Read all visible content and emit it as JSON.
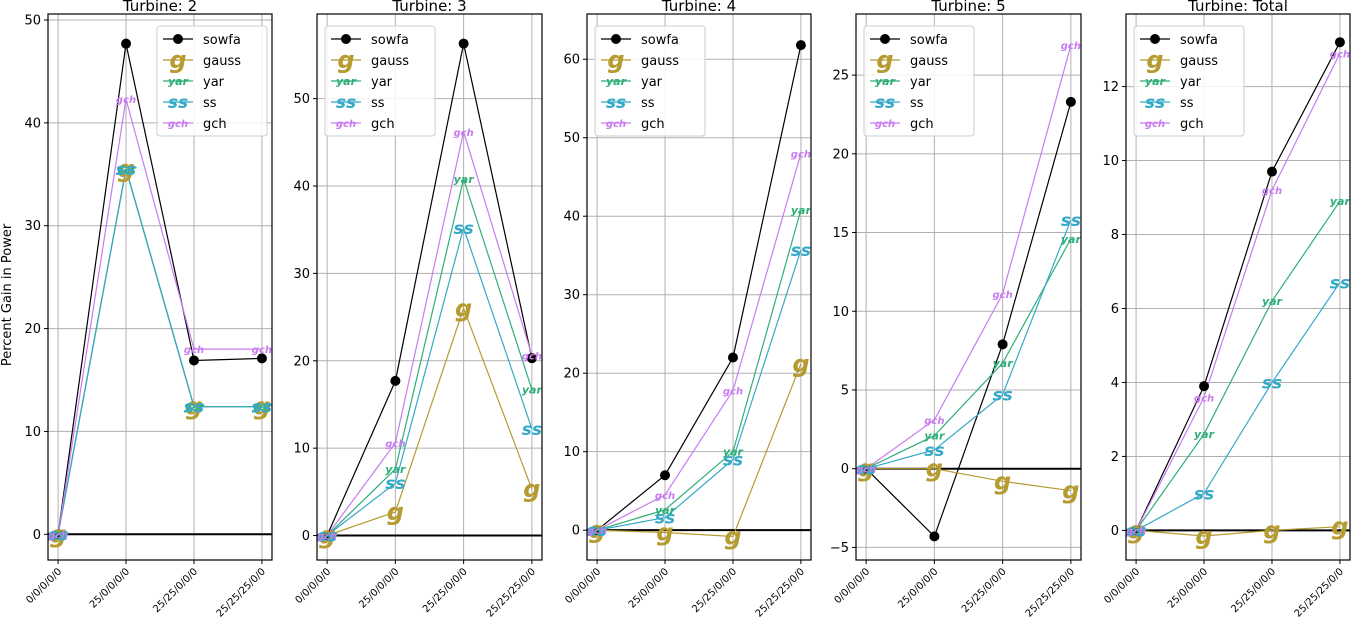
{
  "colors": {
    "sowfa": "#000000",
    "gauss": "#b59b30",
    "yar": "#2eae78",
    "ss": "#34a9c8",
    "gch": "#c97cf0",
    "grid": "#b0b0b0",
    "zero_line": "#000000"
  },
  "chart_data": [
    {
      "type": "line",
      "title": "Turbine: 2",
      "ylabel": "Percent Gain in Power",
      "xlabel": "",
      "categories": [
        "0/0/0/0/0",
        "25/0/0/0/0",
        "25/25/0/0/0",
        "25/25/25/0/0"
      ],
      "ylim": [
        -2.5,
        50
      ],
      "yticks": [
        0,
        10,
        20,
        30,
        40,
        50
      ],
      "grid": true,
      "legend": "top-right",
      "series": [
        {
          "name": "sowfa",
          "marker": "dot",
          "values": [
            0,
            47.7,
            16.9,
            17.1
          ]
        },
        {
          "name": "gauss",
          "marker": "g",
          "values": [
            0,
            35.5,
            12.4,
            12.4
          ]
        },
        {
          "name": "yar",
          "marker": "yar",
          "values": [
            0,
            35.5,
            12.4,
            12.4
          ]
        },
        {
          "name": "ss",
          "marker": "ss",
          "values": [
            0,
            35.5,
            12.4,
            12.4
          ]
        },
        {
          "name": "gch",
          "marker": "gch",
          "values": [
            0,
            42.3,
            18.0,
            18.0
          ]
        }
      ]
    },
    {
      "type": "line",
      "title": "Turbine: 3",
      "ylabel": "",
      "xlabel": "",
      "categories": [
        "0/0/0/0/0",
        "25/0/0/0/0",
        "25/25/0/0/0",
        "25/25/25/0/0"
      ],
      "ylim": [
        -2.8,
        59
      ],
      "yticks": [
        0,
        10,
        20,
        30,
        40,
        50
      ],
      "grid": true,
      "legend": "top-left",
      "series": [
        {
          "name": "sowfa",
          "marker": "dot",
          "values": [
            0,
            17.7,
            56.3,
            20.3
          ]
        },
        {
          "name": "gauss",
          "marker": "g",
          "values": [
            0,
            2.7,
            26.0,
            5.3
          ]
        },
        {
          "name": "yar",
          "marker": "yar",
          "values": [
            0,
            7.6,
            40.8,
            16.7
          ]
        },
        {
          "name": "ss",
          "marker": "ss",
          "values": [
            0,
            6.0,
            35.2,
            12.2
          ]
        },
        {
          "name": "gch",
          "marker": "gch",
          "values": [
            0,
            10.6,
            46.2,
            20.6
          ]
        }
      ]
    },
    {
      "type": "line",
      "title": "Turbine: 4",
      "ylabel": "",
      "xlabel": "",
      "categories": [
        "0/0/0/0/0",
        "25/0/0/0/0",
        "25/25/0/0/0",
        "25/25/25/0/0"
      ],
      "ylim": [
        -3.8,
        65
      ],
      "yticks": [
        0,
        10,
        20,
        30,
        40,
        50,
        60
      ],
      "grid": true,
      "legend": "top-left",
      "series": [
        {
          "name": "sowfa",
          "marker": "dot",
          "values": [
            0,
            7.0,
            22.0,
            61.8
          ]
        },
        {
          "name": "gauss",
          "marker": "g",
          "values": [
            0,
            -0.3,
            -0.8,
            21.2
          ]
        },
        {
          "name": "yar",
          "marker": "yar",
          "values": [
            0,
            2.6,
            10.0,
            40.8
          ]
        },
        {
          "name": "ss",
          "marker": "ss",
          "values": [
            0,
            1.6,
            9.0,
            35.7
          ]
        },
        {
          "name": "gch",
          "marker": "gch",
          "values": [
            0,
            4.5,
            17.8,
            48.0
          ]
        }
      ]
    },
    {
      "type": "line",
      "title": "Turbine: 5",
      "ylabel": "",
      "xlabel": "",
      "categories": [
        "0/0/0/0/0",
        "25/0/0/0/0",
        "25/25/0/0/0",
        "25/25/25/0/0"
      ],
      "ylim": [
        -5.8,
        28.5
      ],
      "yticks": [
        -5,
        0,
        5,
        10,
        15,
        20,
        25
      ],
      "grid": true,
      "legend": "top-left",
      "series": [
        {
          "name": "sowfa",
          "marker": "dot",
          "values": [
            0,
            -4.3,
            7.9,
            23.3
          ]
        },
        {
          "name": "gauss",
          "marker": "g",
          "values": [
            0,
            0,
            -0.8,
            -1.4
          ]
        },
        {
          "name": "yar",
          "marker": "yar",
          "values": [
            0,
            2.1,
            6.7,
            14.6
          ]
        },
        {
          "name": "ss",
          "marker": "ss",
          "values": [
            0,
            1.2,
            4.7,
            15.8
          ]
        },
        {
          "name": "gch",
          "marker": "gch",
          "values": [
            0,
            3.1,
            11.1,
            26.9
          ]
        }
      ]
    },
    {
      "type": "line",
      "title": "Turbine: Total",
      "ylabel": "",
      "xlabel": "",
      "categories": [
        "0/0/0/0/0",
        "25/0/0/0/0",
        "25/25/0/0/0",
        "25/25/25/0/0"
      ],
      "ylim": [
        -0.8,
        13.8
      ],
      "yticks": [
        0,
        2,
        4,
        6,
        8,
        10,
        12
      ],
      "grid": true,
      "legend": "top-left",
      "series": [
        {
          "name": "sowfa",
          "marker": "dot",
          "values": [
            0,
            3.9,
            9.7,
            13.2
          ]
        },
        {
          "name": "gauss",
          "marker": "g",
          "values": [
            0,
            -0.15,
            0.0,
            0.1
          ]
        },
        {
          "name": "yar",
          "marker": "yar",
          "values": [
            0,
            2.6,
            6.2,
            8.9
          ]
        },
        {
          "name": "ss",
          "marker": "ss",
          "values": [
            0,
            1.0,
            4.0,
            6.7
          ]
        },
        {
          "name": "gch",
          "marker": "gch",
          "values": [
            0,
            3.6,
            9.2,
            12.9
          ]
        }
      ]
    }
  ]
}
